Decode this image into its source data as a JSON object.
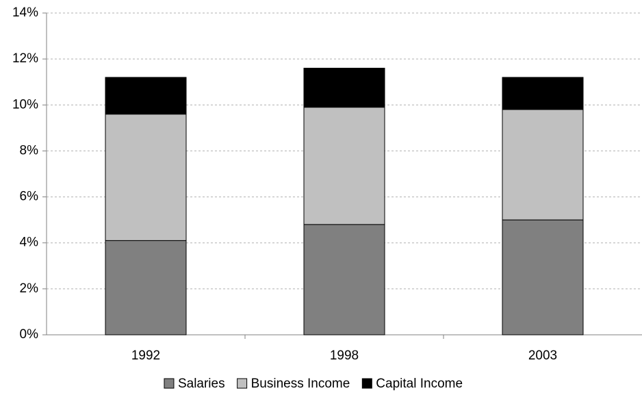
{
  "chart_data": {
    "type": "stacked-bar",
    "categories": [
      "1992",
      "1998",
      "2003"
    ],
    "series": [
      {
        "name": "Salaries",
        "color": "#808080",
        "values": [
          4.1,
          4.8,
          5.0
        ]
      },
      {
        "name": "Business Income",
        "color": "#c0c0c0",
        "values": [
          5.5,
          5.1,
          4.8
        ]
      },
      {
        "name": "Capital Income",
        "color": "#000000",
        "values": [
          1.6,
          1.7,
          1.4
        ]
      }
    ],
    "ylim": [
      0,
      14
    ],
    "yticks": [
      {
        "value": 0,
        "label": "0%"
      },
      {
        "value": 2,
        "label": "2%"
      },
      {
        "value": 4,
        "label": "4%"
      },
      {
        "value": 6,
        "label": "6%"
      },
      {
        "value": 8,
        "label": "8%"
      },
      {
        "value": 10,
        "label": "10%"
      },
      {
        "value": 12,
        "label": "12%"
      },
      {
        "value": 14,
        "label": "14%"
      }
    ],
    "grid": true,
    "legend": "bottom"
  }
}
